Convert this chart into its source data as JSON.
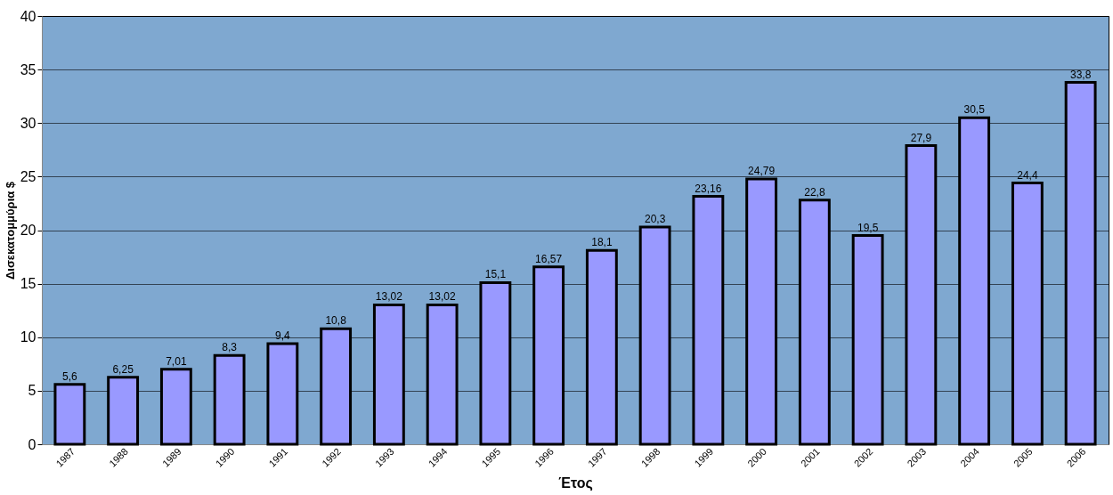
{
  "chart_data": {
    "type": "bar",
    "xlabel": "Έτος",
    "ylabel": "Δισεκατομμύρια $",
    "categories": [
      "1987",
      "1988",
      "1989",
      "1990",
      "1991",
      "1992",
      "1993",
      "1994",
      "1995",
      "1996",
      "1997",
      "1998",
      "1999",
      "2000",
      "2001",
      "2002",
      "2003",
      "2004",
      "2005",
      "2006"
    ],
    "values": [
      5.6,
      6.25,
      7.01,
      8.3,
      9.4,
      10.8,
      13.02,
      13.02,
      15.1,
      16.57,
      18.1,
      20.3,
      23.16,
      24.79,
      22.8,
      19.5,
      27.9,
      30.5,
      24.4,
      33.8
    ],
    "value_labels": [
      "5,6",
      "6,25",
      "7,01",
      "8,3",
      "9,4",
      "10,8",
      "13,02",
      "13,02",
      "15,1",
      "16,57",
      "18,1",
      "20,3",
      "23,16",
      "24,79",
      "22,8",
      "19,5",
      "27,9",
      "30,5",
      "24,4",
      "33,8"
    ],
    "color": "#9999ff",
    "ylim": [
      0,
      40
    ],
    "yticks": [
      0,
      5,
      10,
      15,
      20,
      25,
      30,
      35,
      40
    ],
    "grid": "y"
  }
}
